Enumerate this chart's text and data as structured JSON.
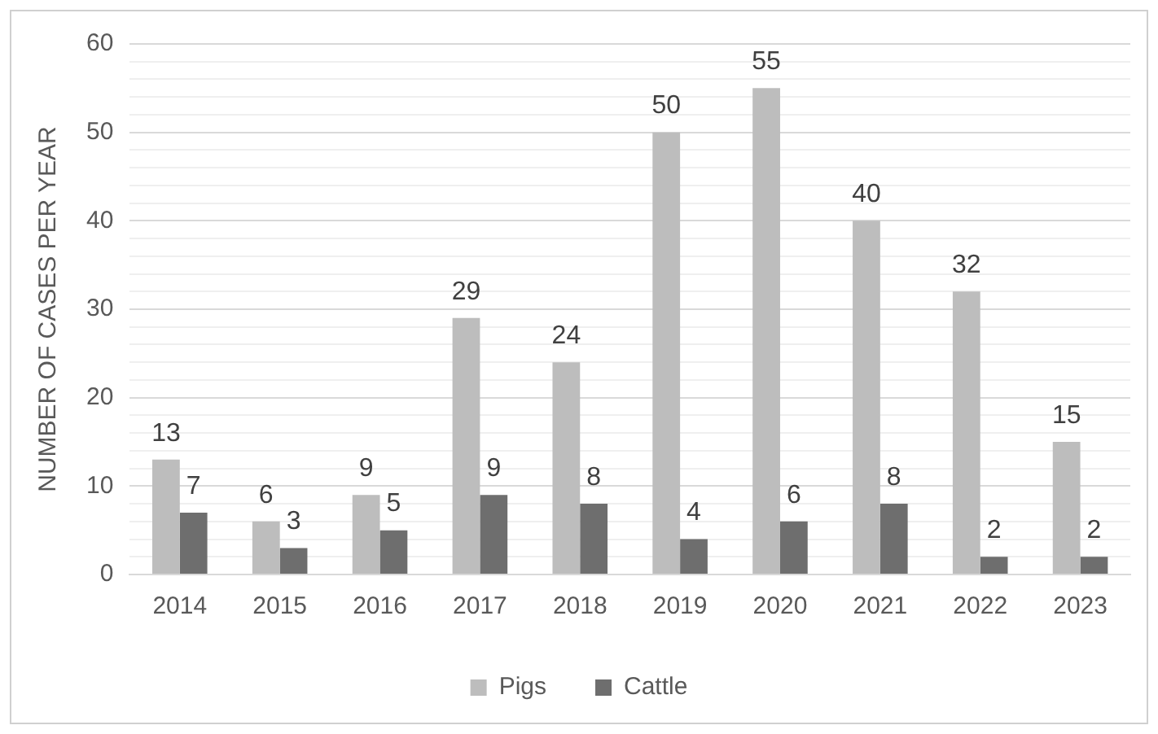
{
  "chart_data": {
    "type": "bar",
    "ylabel": "NUMBER OF CASES PER YEAR",
    "categories": [
      "2014",
      "2015",
      "2016",
      "2017",
      "2018",
      "2019",
      "2020",
      "2021",
      "2022",
      "2023"
    ],
    "series": [
      {
        "name": "Pigs",
        "color": "#bdbdbd",
        "values": [
          13,
          6,
          9,
          29,
          24,
          50,
          55,
          40,
          32,
          15
        ]
      },
      {
        "name": "Cattle",
        "color": "#6e6e6e",
        "values": [
          7,
          3,
          5,
          9,
          8,
          4,
          6,
          8,
          2,
          2
        ]
      }
    ],
    "ylim": [
      0,
      60
    ],
    "yticks": [
      0,
      {
        "value": 2,
        "label": null
      },
      {
        "value": 4,
        "label": null
      },
      {
        "value": 6,
        "label": null
      },
      {
        "value": 8,
        "label": null
      },
      10,
      {
        "value": 12,
        "label": null
      },
      {
        "value": 14,
        "label": null
      },
      {
        "value": 16,
        "label": null
      },
      {
        "value": 18,
        "label": null
      },
      20,
      {
        "value": 22,
        "label": null
      },
      {
        "value": 24,
        "label": null
      },
      {
        "value": 26,
        "label": null
      },
      {
        "value": 28,
        "label": null
      },
      30,
      {
        "value": 32,
        "label": null
      },
      {
        "value": 34,
        "label": null
      },
      {
        "value": 36,
        "label": null
      },
      {
        "value": 38,
        "label": null
      },
      40,
      {
        "value": 42,
        "label": null
      },
      {
        "value": 44,
        "label": null
      },
      {
        "value": 46,
        "label": null
      },
      {
        "value": 48,
        "label": null
      },
      50,
      {
        "value": 52,
        "label": null
      },
      {
        "value": 54,
        "label": null
      },
      {
        "value": 56,
        "label": null
      },
      {
        "value": 58,
        "label": null
      },
      60
    ],
    "grid": "y",
    "legend": "bottom",
    "data_labels": true
  }
}
